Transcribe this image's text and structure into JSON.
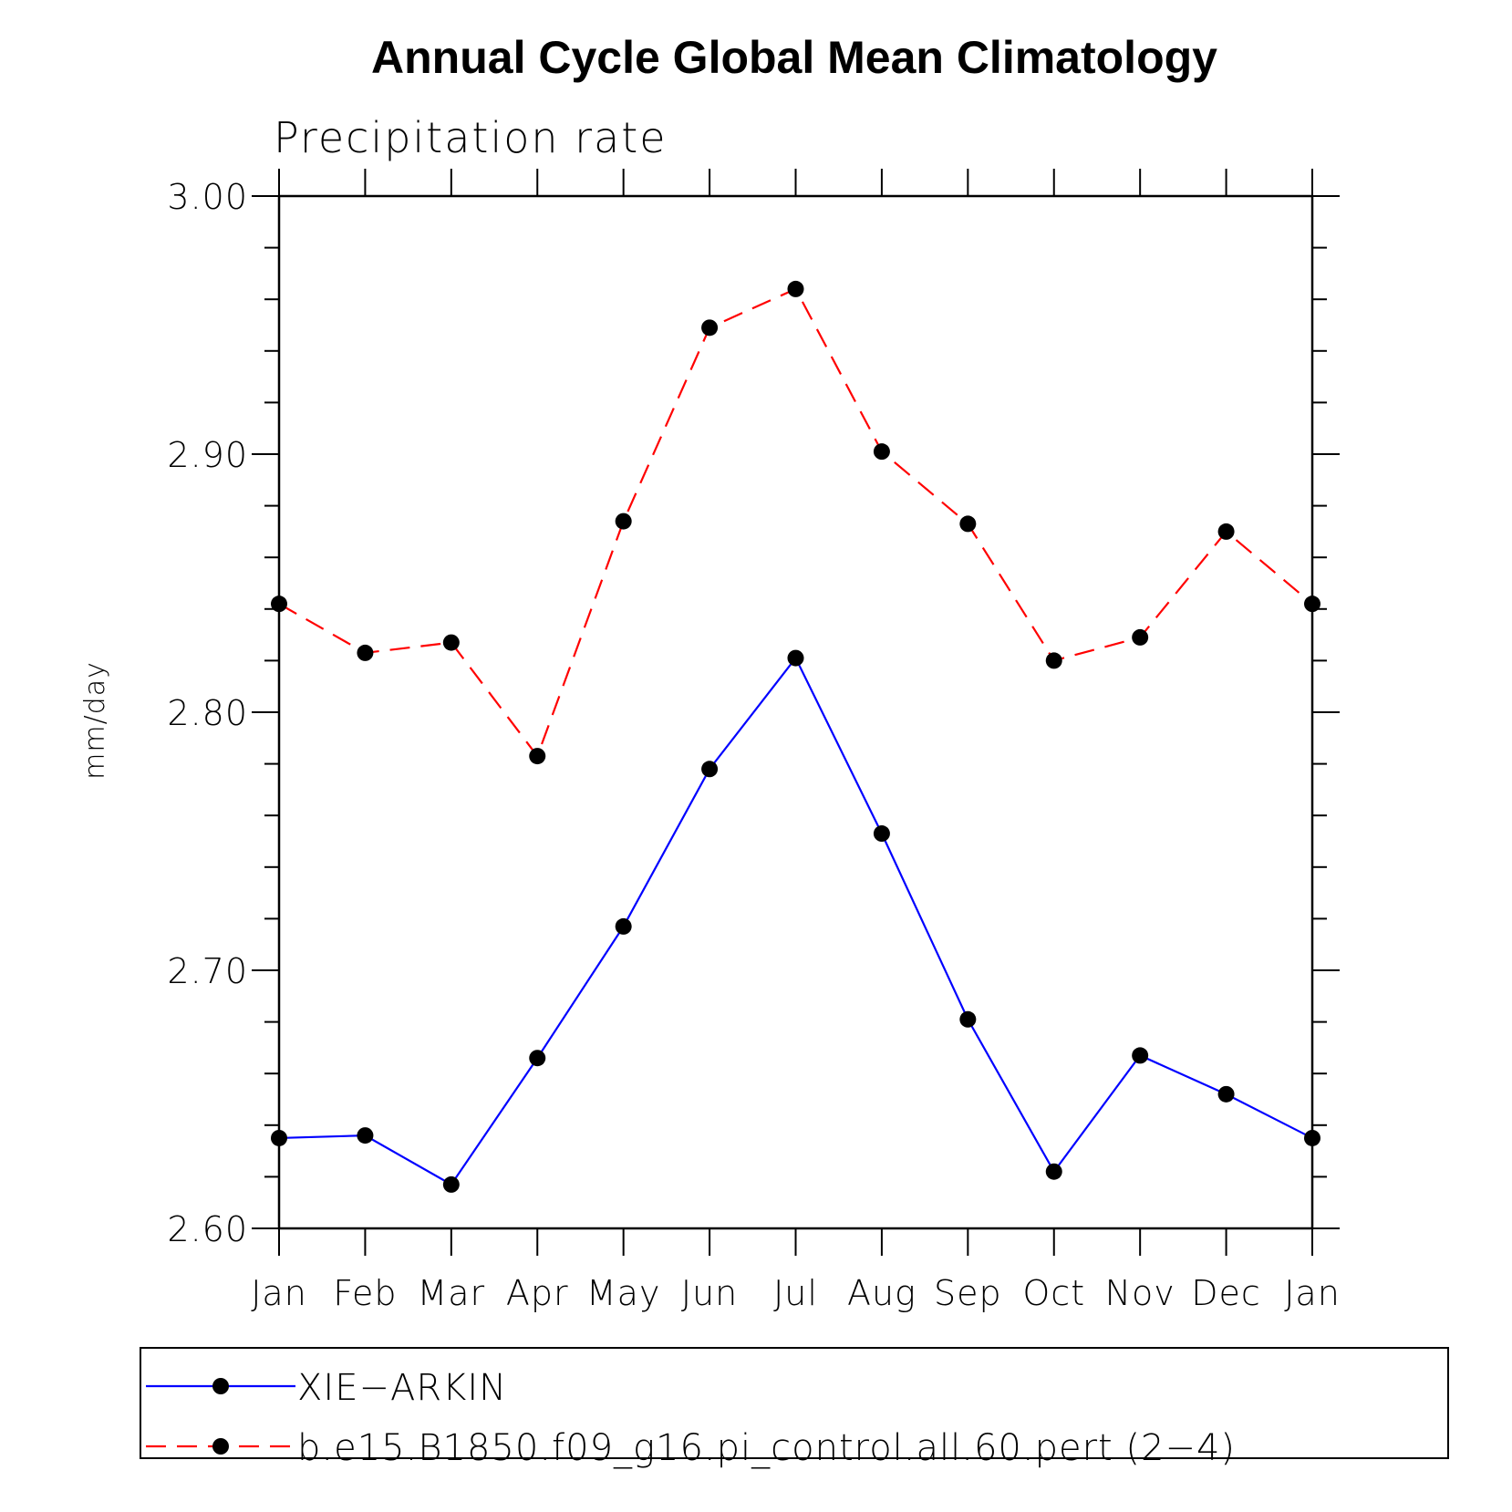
{
  "chart_data": {
    "type": "line",
    "title": "Annual Cycle Global Mean Climatology",
    "subtitle": "Precipitation rate",
    "ylabel": "mm/day",
    "xlabel": "",
    "categories": [
      "Jan",
      "Feb",
      "Mar",
      "Apr",
      "May",
      "Jun",
      "Jul",
      "Aug",
      "Sep",
      "Oct",
      "Nov",
      "Dec",
      "Jan"
    ],
    "ylim": [
      2.6,
      3.0
    ],
    "yticks": [
      "2.60",
      "2.70",
      "2.80",
      "2.90",
      "3.00"
    ],
    "grid": false,
    "legend_position": "bottom",
    "series": [
      {
        "name": "XIE−ARKIN",
        "color": "#0000ff",
        "line_style": "solid",
        "marker": "filled-circle",
        "values": [
          2.635,
          2.636,
          2.617,
          2.666,
          2.717,
          2.778,
          2.821,
          2.753,
          2.681,
          2.622,
          2.667,
          2.652,
          2.635
        ]
      },
      {
        "name": "b.e15.B1850.f09_g16.pi_control.all.60.pert (2−4)",
        "color": "#ff0000",
        "line_style": "dashed",
        "marker": "filled-circle",
        "values": [
          2.842,
          2.823,
          2.827,
          2.783,
          2.874,
          2.949,
          2.964,
          2.901,
          2.873,
          2.82,
          2.829,
          2.87,
          2.842
        ]
      }
    ]
  }
}
